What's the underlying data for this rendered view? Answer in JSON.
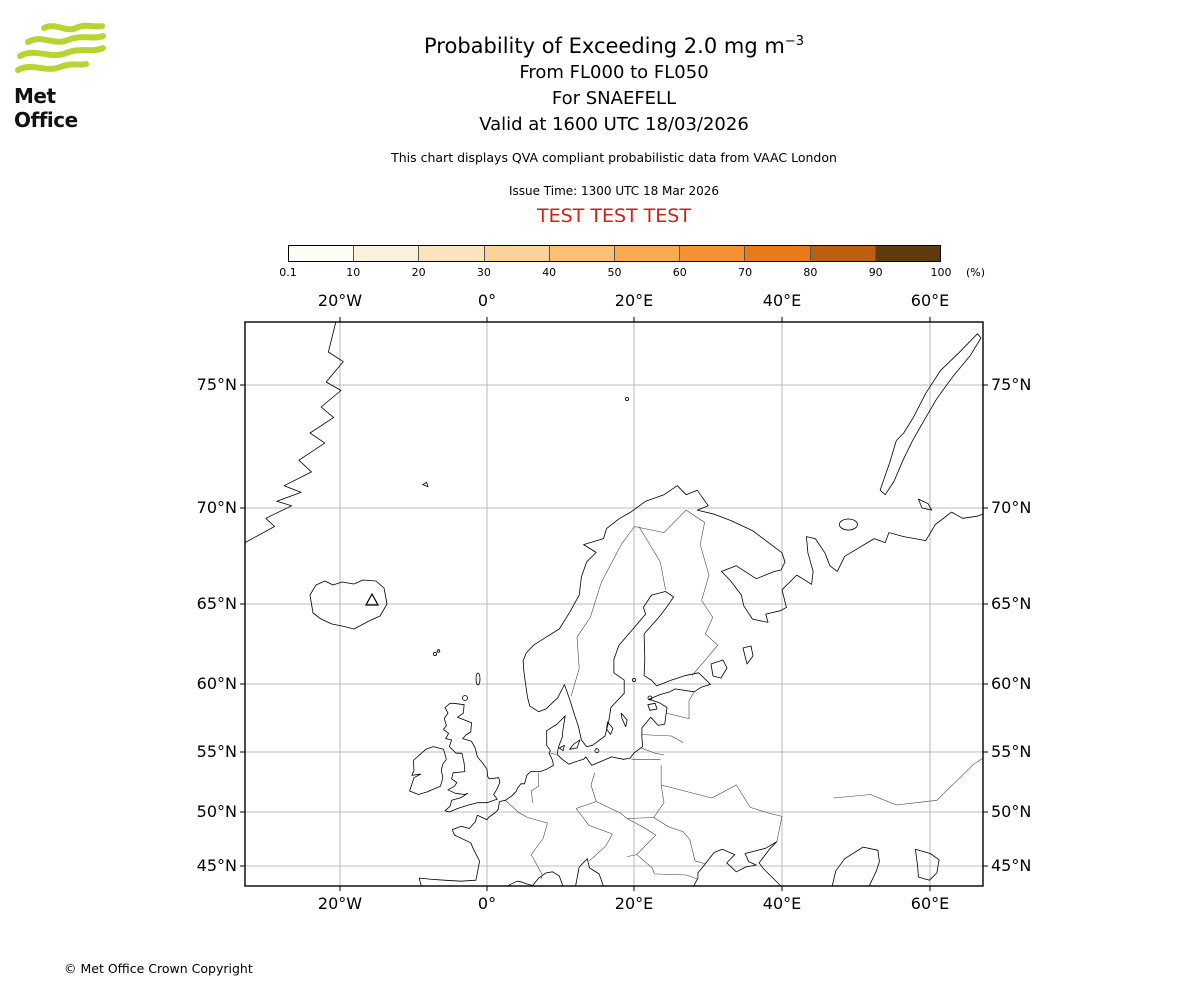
{
  "branding": {
    "name": "Met Office",
    "wave_color": "#b7d433"
  },
  "header": {
    "title_main": "Probability of Exceeding 2.0 mg m",
    "title_sup": "−3",
    "flight_levels": "From FL000 to FL050",
    "volcano": "For SNAEFELL",
    "valid": "Valid at 1600 UTC 18/03/2026",
    "qva_note": "This chart displays QVA compliant probabilistic data from VAAC London",
    "issue": "Issue Time: 1300 UTC 18 Mar 2026",
    "test_banner": "TEST TEST TEST",
    "test_color": "#d21e1c"
  },
  "colorbar": {
    "ticks": [
      "0.1",
      "10",
      "20",
      "30",
      "40",
      "50",
      "60",
      "70",
      "80",
      "90",
      "100"
    ],
    "unit": "(%)",
    "colors": [
      "#fefdf5",
      "#fbf0da",
      "#fae3bd",
      "#fad29a",
      "#f9c076",
      "#f8aa4f",
      "#f59133",
      "#e87a1a",
      "#bc5f10",
      "#5f3c10"
    ]
  },
  "map_axes": {
    "lon_labels": [
      "20°W",
      "0°",
      "20°E",
      "40°E",
      "60°E"
    ],
    "lat_labels": [
      "75°N",
      "70°N",
      "65°N",
      "60°N",
      "55°N",
      "50°N",
      "45°N"
    ]
  },
  "footer": {
    "copyright": "© Met Office Crown Copyright"
  },
  "chart_data": {
    "type": "map",
    "product": "VAAC London QVA probability chart",
    "probability_threshold": "2.0 mg m^-3",
    "layer": "FL000 to FL050",
    "volcano": "SNAEFELL",
    "valid_time": "1600 UTC 18/03/2026",
    "issue_time": "1300 UTC 18 Mar 2026",
    "projection": "mercator",
    "lon_gridlines_deg_east": [
      -20,
      0,
      20,
      40,
      60
    ],
    "lat_gridlines_deg_north": [
      45,
      50,
      55,
      60,
      65,
      70,
      75
    ],
    "scale_percent_ticks": [
      0.1,
      10,
      20,
      30,
      40,
      50,
      60,
      70,
      80,
      90,
      100
    ],
    "exceedance_areas_shown": false
  }
}
